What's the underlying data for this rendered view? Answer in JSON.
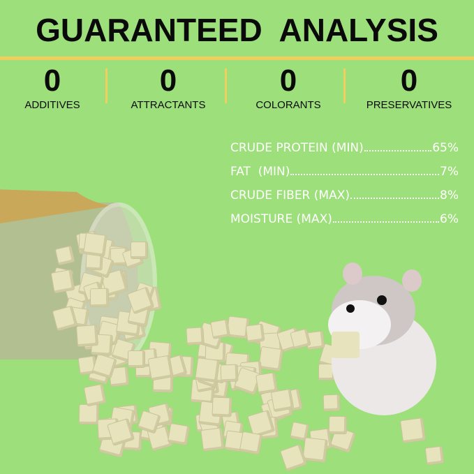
{
  "header": {
    "title": "GUARANTEED  ANALYSIS"
  },
  "stats": [
    {
      "value": "0",
      "label": "ADDITIVES"
    },
    {
      "value": "0",
      "label": "ATTRACTANTS"
    },
    {
      "value": "0",
      "label": "COLORANTS"
    },
    {
      "value": "0",
      "label": "PRESERVATIVES"
    }
  ],
  "analysis": [
    {
      "label": "CRUDE PROTEIN (MIN)",
      "value": "65%"
    },
    {
      "label": "FAT  (MIN)",
      "value": "7%"
    },
    {
      "label": "CRUDE FIBER (MAX)",
      "value": "8%"
    },
    {
      "label": "MOISTURE (MAX)",
      "value": "6%"
    }
  ],
  "colors": {
    "background": "#9ddf7a",
    "accent": "#f0cf5e",
    "text": "#0a0a0a"
  },
  "images": [
    "tipped-jar-of-freeze-dried-cubes",
    "hamster-holding-cube"
  ]
}
